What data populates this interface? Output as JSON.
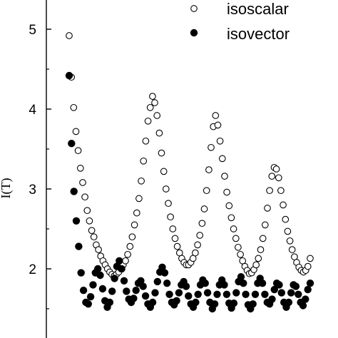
{
  "chart_data": {
    "type": "scatter",
    "title": "",
    "xlabel": "",
    "ylabel": "I(T)",
    "ylim": [
      1.1,
      5.45
    ],
    "yticks": [
      "2",
      "3",
      "4",
      "5"
    ],
    "grid": false,
    "legend": "top-right",
    "series": [
      {
        "name": "isoscalar",
        "marker": "open-circle",
        "points": [
          [
            0,
            4.92
          ],
          [
            1,
            4.4
          ],
          [
            2,
            4.02
          ],
          [
            3,
            3.72
          ],
          [
            4,
            3.48
          ],
          [
            5,
            3.26
          ],
          [
            6,
            3.08
          ],
          [
            7,
            2.9
          ],
          [
            8,
            2.73
          ],
          [
            9,
            2.6
          ],
          [
            10,
            2.48
          ],
          [
            11,
            2.4
          ],
          [
            12,
            2.3
          ],
          [
            13,
            2.24
          ],
          [
            14,
            2.16
          ],
          [
            15,
            2.1
          ],
          [
            16,
            2.05
          ],
          [
            17,
            2.0
          ],
          [
            18,
            1.96
          ],
          [
            19,
            1.93
          ],
          [
            20,
            1.91
          ],
          [
            21,
            1.93
          ],
          [
            22,
            1.96
          ],
          [
            23,
            2.0
          ],
          [
            24,
            2.05
          ],
          [
            25,
            2.1
          ],
          [
            26,
            2.18
          ],
          [
            27,
            2.28
          ],
          [
            28,
            2.4
          ],
          [
            29,
            2.55
          ],
          [
            30,
            2.7
          ],
          [
            31,
            2.88
          ],
          [
            32,
            3.1
          ],
          [
            33,
            3.35
          ],
          [
            34,
            3.6
          ],
          [
            35,
            3.85
          ],
          [
            36,
            4.02
          ],
          [
            37,
            4.16
          ],
          [
            38,
            4.08
          ],
          [
            39,
            3.92
          ],
          [
            40,
            3.7
          ],
          [
            41,
            3.45
          ],
          [
            42,
            3.22
          ],
          [
            43,
            3.0
          ],
          [
            44,
            2.82
          ],
          [
            45,
            2.65
          ],
          [
            46,
            2.5
          ],
          [
            47,
            2.38
          ],
          [
            48,
            2.28
          ],
          [
            49,
            2.2
          ],
          [
            50,
            2.13
          ],
          [
            51,
            2.08
          ],
          [
            52,
            2.05
          ],
          [
            53,
            2.05
          ],
          [
            54,
            2.08
          ],
          [
            55,
            2.13
          ],
          [
            56,
            2.2
          ],
          [
            57,
            2.3
          ],
          [
            58,
            2.42
          ],
          [
            59,
            2.57
          ],
          [
            60,
            2.75
          ],
          [
            61,
            2.98
          ],
          [
            62,
            3.24
          ],
          [
            63,
            3.52
          ],
          [
            64,
            3.78
          ],
          [
            65,
            3.92
          ],
          [
            66,
            3.8
          ],
          [
            67,
            3.6
          ],
          [
            68,
            3.38
          ],
          [
            69,
            3.16
          ],
          [
            70,
            2.96
          ],
          [
            71,
            2.79
          ],
          [
            72,
            2.64
          ],
          [
            73,
            2.5
          ],
          [
            74,
            2.38
          ],
          [
            75,
            2.27
          ],
          [
            76,
            2.18
          ],
          [
            77,
            2.1
          ],
          [
            78,
            2.03
          ],
          [
            79,
            1.98
          ],
          [
            80,
            1.94
          ],
          [
            81,
            1.95
          ],
          [
            82,
            1.99
          ],
          [
            83,
            2.05
          ],
          [
            84,
            2.13
          ],
          [
            85,
            2.24
          ],
          [
            86,
            2.38
          ],
          [
            87,
            2.55
          ],
          [
            88,
            2.76
          ],
          [
            89,
            2.98
          ],
          [
            90,
            3.16
          ],
          [
            91,
            3.27
          ],
          [
            92,
            3.25
          ],
          [
            93,
            3.14
          ],
          [
            94,
            2.98
          ],
          [
            95,
            2.8
          ],
          [
            96,
            2.62
          ],
          [
            97,
            2.47
          ],
          [
            98,
            2.35
          ],
          [
            99,
            2.24
          ],
          [
            100,
            2.15
          ],
          [
            101,
            2.08
          ],
          [
            102,
            2.02
          ],
          [
            103,
            1.98
          ],
          [
            104,
            1.96
          ],
          [
            105,
            1.98
          ],
          [
            106,
            2.03
          ],
          [
            107,
            2.13
          ]
        ]
      },
      {
        "name": "isovector",
        "marker": "filled-circle",
        "points": [
          [
            0,
            4.42
          ],
          [
            1,
            3.57
          ],
          [
            2,
            2.97
          ],
          [
            3,
            2.6
          ],
          [
            4,
            2.28
          ],
          [
            5,
            1.95
          ],
          [
            6,
            1.73
          ],
          [
            7,
            1.58
          ],
          [
            8,
            1.56
          ],
          [
            9,
            1.65
          ],
          [
            10,
            1.8
          ],
          [
            11,
            1.95
          ],
          [
            12,
            2.0
          ],
          [
            13,
            1.92
          ],
          [
            14,
            1.75
          ],
          [
            15,
            1.6
          ],
          [
            16,
            1.52
          ],
          [
            17,
            1.58
          ],
          [
            18,
            1.72
          ],
          [
            19,
            1.88
          ],
          [
            20,
            2.03
          ],
          [
            21,
            2.1
          ],
          [
            22,
            2.0
          ],
          [
            23,
            1.85
          ],
          [
            24,
            1.72
          ],
          [
            25,
            1.62
          ],
          [
            26,
            1.58
          ],
          [
            27,
            1.63
          ],
          [
            28,
            1.73
          ],
          [
            29,
            1.82
          ],
          [
            30,
            1.85
          ],
          [
            31,
            1.78
          ],
          [
            32,
            1.66
          ],
          [
            33,
            1.56
          ],
          [
            34,
            1.52
          ],
          [
            35,
            1.58
          ],
          [
            36,
            1.7
          ],
          [
            37,
            1.84
          ],
          [
            38,
            1.96
          ],
          [
            39,
            2.02
          ],
          [
            40,
            1.95
          ],
          [
            41,
            1.82
          ],
          [
            42,
            1.68
          ],
          [
            43,
            1.58
          ],
          [
            44,
            1.55
          ],
          [
            45,
            1.6
          ],
          [
            46,
            1.7
          ],
          [
            47,
            1.8
          ],
          [
            48,
            1.84
          ],
          [
            49,
            1.78
          ],
          [
            50,
            1.66
          ],
          [
            51,
            1.56
          ],
          [
            52,
            1.52
          ],
          [
            53,
            1.58
          ],
          [
            54,
            1.68
          ],
          [
            55,
            1.8
          ],
          [
            56,
            1.86
          ],
          [
            57,
            1.82
          ],
          [
            58,
            1.7
          ],
          [
            59,
            1.58
          ],
          [
            60,
            1.5
          ],
          [
            61,
            1.56
          ],
          [
            62,
            1.68
          ],
          [
            63,
            1.8
          ],
          [
            64,
            1.86
          ],
          [
            65,
            1.8
          ],
          [
            66,
            1.68
          ],
          [
            67,
            1.57
          ],
          [
            68,
            1.51
          ],
          [
            69,
            1.57
          ],
          [
            70,
            1.7
          ],
          [
            71,
            1.84
          ],
          [
            72,
            1.9
          ],
          [
            73,
            1.82
          ],
          [
            74,
            1.68
          ],
          [
            75,
            1.55
          ],
          [
            76,
            1.5
          ],
          [
            77,
            1.56
          ],
          [
            78,
            1.68
          ],
          [
            79,
            1.82
          ],
          [
            80,
            1.88
          ],
          [
            81,
            1.82
          ],
          [
            82,
            1.68
          ],
          [
            83,
            1.58
          ],
          [
            84,
            1.56
          ],
          [
            85,
            1.62
          ],
          [
            86,
            1.74
          ],
          [
            87,
            1.82
          ],
          [
            88,
            1.8
          ],
          [
            89,
            1.7
          ],
          [
            90,
            1.58
          ],
          [
            91,
            1.52
          ],
          [
            92,
            1.58
          ],
          [
            93,
            1.7
          ],
          [
            94,
            1.8
          ],
          [
            95,
            1.78
          ],
          [
            96,
            1.68
          ],
          [
            97,
            1.58
          ],
          [
            98,
            1.54
          ],
          [
            99,
            1.62
          ],
          [
            100,
            1.74
          ],
          [
            101,
            1.82
          ]
        ]
      }
    ]
  }
}
